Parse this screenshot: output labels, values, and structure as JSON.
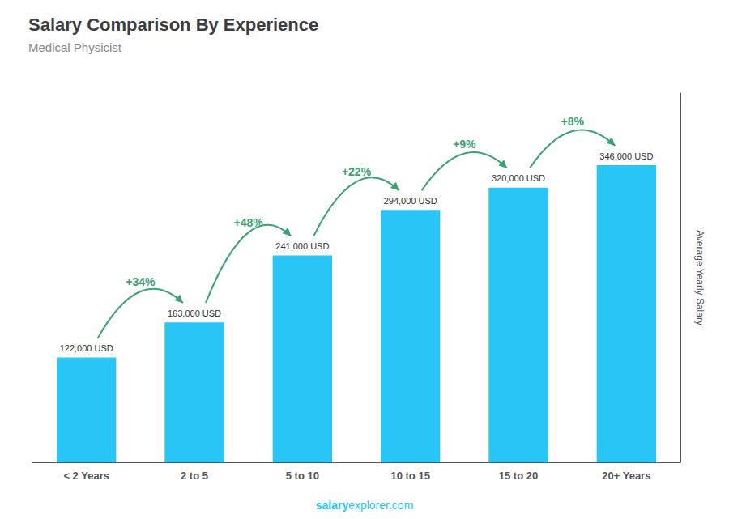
{
  "chart_data": {
    "type": "bar",
    "title": "Salary Comparison By Experience",
    "subtitle": "Medical Physicist",
    "ylabel": "Average Yearly Salary",
    "categories": [
      "< 2 Years",
      "2 to 5",
      "5 to 10",
      "10 to 15",
      "15 to 20",
      "20+ Years"
    ],
    "values": [
      122000,
      163000,
      241000,
      294000,
      320000,
      346000
    ],
    "value_labels": [
      "122,000 USD",
      "163,000 USD",
      "241,000 USD",
      "294,000 USD",
      "320,000 USD",
      "346,000 USD"
    ],
    "data_labels": true,
    "annotations": [
      "+34%",
      "+48%",
      "+22%",
      "+9%",
      "+8%"
    ],
    "footer": [
      "salary",
      "explorer.com"
    ],
    "color": "#29C5F6",
    "ylim": [
      0,
      430000
    ],
    "tick_labels": "x",
    "grid": false
  }
}
